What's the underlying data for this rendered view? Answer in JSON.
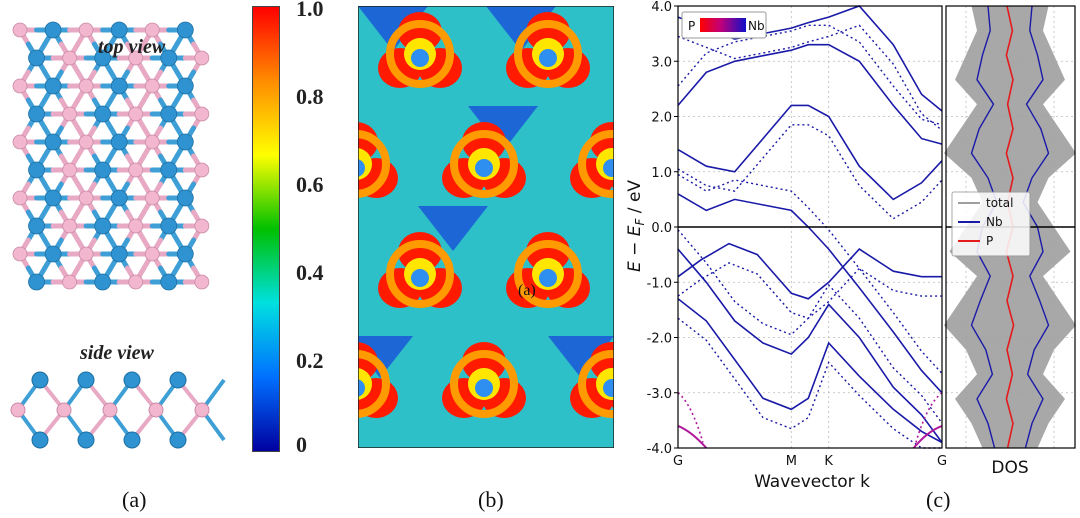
{
  "panel_a": {
    "top_label": "top view",
    "side_label": "side view",
    "caption": "(a)",
    "colors": {
      "p_atom": "#f2b6cf",
      "nb_atom": "#2e93d0",
      "bond_p": "#e8a9c4",
      "bond_nb": "#3e9fd6"
    }
  },
  "panel_b": {
    "caption": "(b)",
    "marker": "(a)",
    "colorbar_ticks": [
      "1.0",
      "0.8",
      "0.6",
      "0.4",
      "0.2",
      "0"
    ],
    "colorbar_colors": [
      "#ff0000",
      "#ff8c00",
      "#ffff00",
      "#00c000",
      "#00e0e0",
      "#0070ff",
      "#0000a0"
    ]
  },
  "panel_c": {
    "caption": "(c)",
    "ylabel": "E − E_F / eV",
    "ylabel_main": "E − E",
    "ylabel_sub": "F",
    "ylabel_tail": " / eV",
    "xlabel": "Wavevector k",
    "dos_xlabel": "DOS",
    "legend_colorbar": {
      "left": "P",
      "right": "Nb"
    },
    "dos_legend": [
      "total",
      "Nb",
      "P"
    ],
    "colors": {
      "band": "#1a1aa8",
      "total": "#9e9e9e",
      "nb": "#1a1aa8",
      "p": "#e41a1c",
      "p_band": "#b0189b"
    },
    "chart_data": [
      {
        "type": "line",
        "title": "",
        "xlabel": "Wavevector k",
        "ylabel": "E − E_F / eV",
        "ylim": [
          -4.0,
          4.0
        ],
        "yticks": [
          "-4.0",
          "-3.0",
          "-2.0",
          "-1.0",
          "0.0",
          "1.0",
          "2.0",
          "3.0",
          "4.0"
        ],
        "x_ticks": [
          "G",
          "M",
          "K",
          "G"
        ],
        "x_positions": [
          0,
          1,
          1.33,
          2.33
        ],
        "grid": true,
        "legend": "top-left",
        "series": [
          {
            "x": [
              0,
              0.2,
              0.45,
              0.7,
              1.0,
              1.15,
              1.33,
              1.6,
              1.9,
              2.15,
              2.33
            ],
            "values": [
              -0.9,
              -0.6,
              -0.3,
              -0.5,
              -1.2,
              -1.3,
              -1.0,
              -0.4,
              -0.8,
              -0.9,
              -0.9
            ]
          },
          {
            "x": [
              0,
              0.25,
              0.5,
              0.75,
              1.0,
              1.15,
              1.33,
              1.6,
              1.9,
              2.15,
              2.33
            ],
            "values": [
              -0.4,
              -1.0,
              -1.7,
              -2.1,
              -2.3,
              -2.0,
              -1.4,
              -2.0,
              -2.9,
              -3.4,
              -3.9
            ]
          },
          {
            "x": [
              0,
              0.25,
              0.5,
              0.75,
              1.0,
              1.15,
              1.33,
              1.6,
              1.9,
              2.15,
              2.33
            ],
            "values": [
              -1.3,
              -1.7,
              -2.4,
              -3.1,
              -3.3,
              -3.1,
              -2.1,
              -2.7,
              -3.3,
              -3.7,
              -3.9
            ]
          },
          {
            "x": [
              0,
              0.25,
              0.5,
              0.75,
              1.0,
              1.15,
              1.33,
              1.6,
              1.9,
              2.15,
              2.33
            ],
            "values": [
              0.6,
              0.3,
              0.5,
              0.4,
              0.3,
              0.0,
              -0.4,
              -1.1,
              -1.9,
              -2.6,
              -3.0
            ]
          },
          {
            "x": [
              0,
              0.25,
              0.5,
              0.75,
              1.0,
              1.15,
              1.33,
              1.6,
              1.9,
              2.15,
              2.33
            ],
            "values": [
              1.4,
              1.1,
              1.0,
              1.6,
              2.2,
              2.2,
              2.0,
              1.1,
              0.5,
              0.8,
              1.2
            ]
          },
          {
            "x": [
              0,
              0.25,
              0.5,
              0.75,
              1.0,
              1.15,
              1.33,
              1.6,
              1.9,
              2.15,
              2.33
            ],
            "values": [
              2.2,
              2.8,
              3.0,
              3.1,
              3.2,
              3.3,
              3.3,
              3.0,
              2.2,
              1.6,
              1.5
            ]
          },
          {
            "x": [
              0,
              0.25,
              0.5,
              0.75,
              1.0,
              1.15,
              1.33,
              1.6,
              1.9,
              2.15,
              2.33
            ],
            "values": [
              3.8,
              3.6,
              3.4,
              3.5,
              3.6,
              3.7,
              3.8,
              4.0,
              3.3,
              2.4,
              2.1
            ]
          }
        ]
      },
      {
        "type": "line",
        "title": "",
        "xlabel": "DOS",
        "ylim": [
          -4.0,
          4.0
        ],
        "grid": true,
        "legend": "left",
        "series": [
          {
            "name": "total",
            "values": [
              0.35,
              0.3,
              0.4,
              0.5,
              0.3,
              0.45,
              0.6,
              0.35,
              0.25,
              0.4,
              0.55,
              0.3,
              0.45,
              0.6,
              0.4,
              0.3,
              0.5,
              0.35,
              0.25
            ]
          },
          {
            "name": "Nb",
            "values": [
              0.2,
              0.18,
              0.25,
              0.3,
              0.15,
              0.28,
              0.35,
              0.2,
              0.12,
              0.25,
              0.3,
              0.18,
              0.27,
              0.35,
              0.22,
              0.16,
              0.3,
              0.2,
              0.14
            ]
          },
          {
            "name": "P",
            "values": [
              0.05,
              0.04,
              0.06,
              0.05,
              0.04,
              0.05,
              0.06,
              0.05,
              0.04,
              0.05,
              0.06,
              0.05,
              0.05,
              0.06,
              0.05,
              0.04,
              0.06,
              0.05,
              0.04
            ]
          }
        ]
      }
    ]
  }
}
